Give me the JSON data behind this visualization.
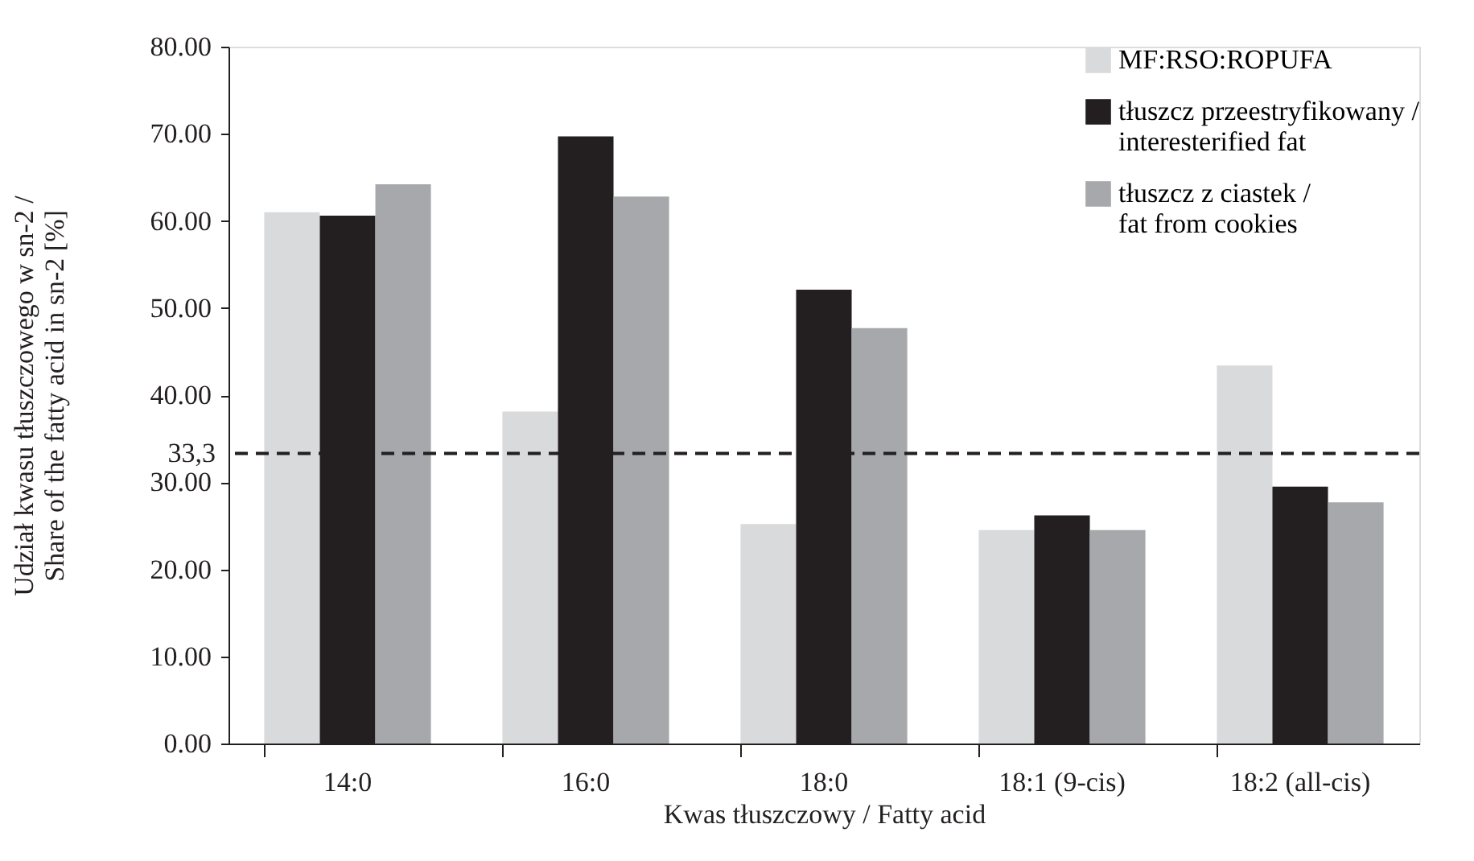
{
  "chart_data": {
    "type": "bar",
    "xlabel": "Kwas tłuszczowy / Fatty acid",
    "ylabel": "Udział kwasu tłuszczowego w sn-2 / Share of the fatty acid in sn-2 [%]",
    "categories": [
      "14:0",
      "16:0",
      "18:0",
      "18:1 (9-cis)",
      "18:2 (all-cis)"
    ],
    "series": [
      {
        "name": "MF:RSO:ROPUFA",
        "color": "#d9dadc",
        "values": [
          61.0,
          38.1,
          25.2,
          24.5,
          43.4
        ]
      },
      {
        "name": "tłuszcz przeestryfikowany / interesterified fat",
        "color": "#231f20",
        "values": [
          60.6,
          69.7,
          52.1,
          26.2,
          29.5
        ]
      },
      {
        "name": "tłuszcz z ciastek / fat from cookies",
        "color": "#a7a8ab",
        "values": [
          64.2,
          62.8,
          47.7,
          24.5,
          27.7
        ]
      }
    ],
    "ylim": [
      0,
      80
    ],
    "yticks": [
      {
        "value": 0,
        "label": "0.00"
      },
      {
        "value": 10,
        "label": "10.00"
      },
      {
        "value": 20,
        "label": "20.00"
      },
      {
        "value": 30,
        "label": "30.00"
      },
      {
        "value": 40,
        "label": "40.00"
      },
      {
        "value": 50,
        "label": "50.00"
      },
      {
        "value": 60,
        "label": "60.00"
      },
      {
        "value": 70,
        "label": "70.00"
      },
      {
        "value": 80,
        "label": "80.00"
      }
    ],
    "ref_lines": [
      {
        "axis": "y",
        "value": 33.3,
        "label": "33,3",
        "line_style": "dashed",
        "color": "#231f20"
      }
    ],
    "legend": "top right",
    "grid": false
  }
}
